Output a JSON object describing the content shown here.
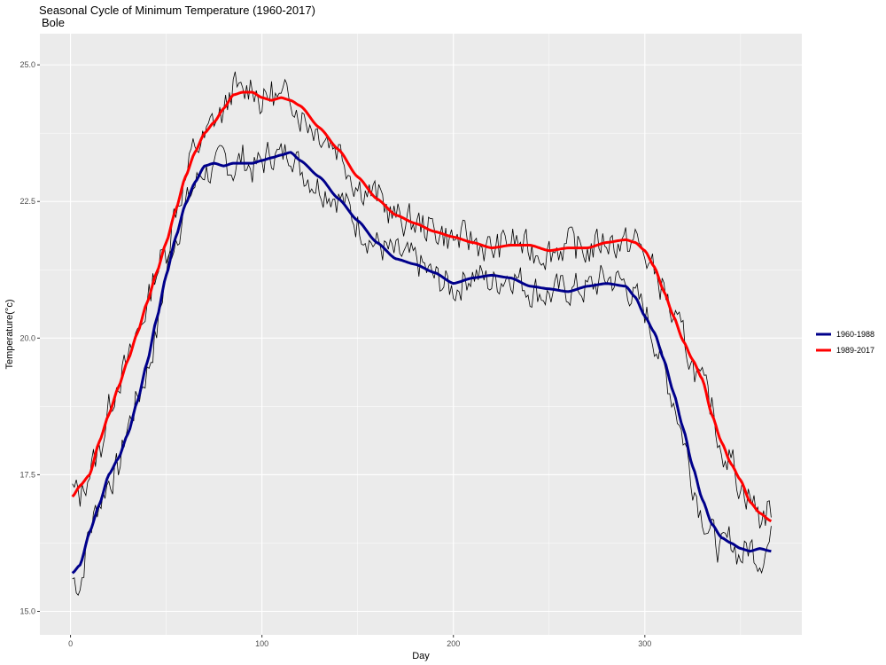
{
  "chart_data": {
    "type": "line",
    "title": "Seasonal Cycle of Minimum Temperature (1960-2017)",
    "subtitle": "Bole",
    "xlabel": "Day",
    "ylabel": "Temperature(°c)",
    "xlim": [
      -16,
      382
    ],
    "ylim": [
      14.57,
      25.57
    ],
    "x_ticks": [
      0,
      100,
      200,
      300
    ],
    "y_ticks": [
      15.0,
      17.5,
      20.0,
      22.5,
      25.0
    ],
    "x_tick_labels": [
      "0",
      "100",
      "200",
      "300"
    ],
    "y_tick_labels": [
      "15.0",
      "17.5",
      "20.0",
      "22.5",
      "25.0"
    ],
    "grid": true,
    "legend_position": "right",
    "series": [
      {
        "name": "1960-1988",
        "color": "#00008B",
        "style": "smooth",
        "x": [
          1,
          5,
          10,
          15,
          20,
          25,
          30,
          35,
          40,
          45,
          50,
          55,
          60,
          65,
          70,
          75,
          80,
          85,
          90,
          95,
          100,
          105,
          110,
          115,
          120,
          130,
          140,
          150,
          160,
          170,
          180,
          190,
          200,
          210,
          220,
          230,
          240,
          250,
          260,
          270,
          280,
          290,
          295,
          300,
          305,
          310,
          315,
          320,
          325,
          330,
          335,
          340,
          345,
          350,
          355,
          360,
          366
        ],
        "y": [
          15.7,
          15.85,
          16.45,
          16.95,
          17.5,
          17.8,
          18.25,
          18.85,
          19.55,
          20.35,
          21.15,
          21.85,
          22.45,
          22.85,
          23.15,
          23.2,
          23.15,
          23.2,
          23.2,
          23.2,
          23.25,
          23.3,
          23.35,
          23.4,
          23.25,
          22.95,
          22.55,
          22.15,
          21.75,
          21.45,
          21.35,
          21.2,
          21.0,
          21.1,
          21.15,
          21.1,
          20.95,
          20.9,
          20.85,
          20.95,
          21.0,
          20.95,
          20.75,
          20.4,
          20.1,
          19.6,
          19.0,
          18.35,
          17.65,
          17.05,
          16.6,
          16.35,
          16.25,
          16.15,
          16.1,
          16.15,
          16.1
        ]
      },
      {
        "name": "1989-2017",
        "color": "#FF0000",
        "style": "smooth",
        "x": [
          1,
          5,
          10,
          15,
          20,
          25,
          30,
          35,
          40,
          45,
          50,
          55,
          60,
          65,
          70,
          75,
          80,
          85,
          90,
          95,
          100,
          105,
          110,
          115,
          120,
          130,
          140,
          150,
          160,
          170,
          180,
          190,
          200,
          210,
          220,
          230,
          240,
          250,
          260,
          270,
          280,
          290,
          295,
          300,
          305,
          310,
          315,
          320,
          325,
          330,
          335,
          340,
          345,
          350,
          355,
          360,
          366
        ],
        "y": [
          17.1,
          17.3,
          17.5,
          18.1,
          18.6,
          19.1,
          19.6,
          20.1,
          20.65,
          21.2,
          21.75,
          22.35,
          22.95,
          23.4,
          23.75,
          23.95,
          24.2,
          24.45,
          24.5,
          24.5,
          24.4,
          24.35,
          24.4,
          24.35,
          24.25,
          23.85,
          23.45,
          22.95,
          22.55,
          22.25,
          22.1,
          21.95,
          21.85,
          21.75,
          21.65,
          21.7,
          21.7,
          21.6,
          21.65,
          21.65,
          21.75,
          21.8,
          21.75,
          21.6,
          21.3,
          20.85,
          20.4,
          19.95,
          19.6,
          19.25,
          18.6,
          18.1,
          17.7,
          17.4,
          17.0,
          16.8,
          16.65
        ]
      }
    ],
    "raw_traces": [
      {
        "color": "#000000",
        "style": "noisy-daily",
        "x": [
          1,
          5,
          10,
          15,
          20,
          25,
          30,
          35,
          40,
          45,
          50,
          55,
          60,
          65,
          70,
          75,
          80,
          85,
          90,
          95,
          100,
          105,
          110,
          115,
          120,
          130,
          140,
          150,
          160,
          170,
          180,
          190,
          200,
          210,
          220,
          230,
          240,
          250,
          260,
          270,
          280,
          290,
          295,
          300,
          305,
          310,
          315,
          320,
          325,
          330,
          335,
          340,
          345,
          350,
          355,
          360,
          366
        ],
        "y": [
          15.6,
          15.5,
          16.5,
          17.0,
          17.4,
          17.6,
          18.4,
          18.9,
          19.4,
          20.1,
          21.2,
          21.9,
          22.4,
          22.8,
          23.1,
          23.0,
          23.3,
          23.1,
          23.3,
          23.1,
          23.2,
          23.4,
          23.3,
          23.5,
          23.1,
          22.8,
          22.6,
          22.1,
          21.7,
          21.5,
          21.4,
          21.1,
          20.9,
          21.2,
          21.0,
          21.2,
          20.9,
          20.8,
          20.9,
          20.9,
          21.1,
          21.0,
          20.7,
          20.5,
          20.0,
          19.4,
          18.9,
          18.2,
          17.4,
          16.8,
          16.4,
          16.1,
          16.3,
          16.0,
          16.2,
          16.0,
          16.3
        ],
        "amp": 0.32,
        "seed": 7
      },
      {
        "color": "#000000",
        "style": "noisy-daily",
        "x": [
          1,
          5,
          10,
          15,
          20,
          25,
          30,
          35,
          40,
          45,
          50,
          55,
          60,
          65,
          70,
          75,
          80,
          85,
          90,
          95,
          100,
          105,
          110,
          115,
          120,
          130,
          140,
          150,
          160,
          170,
          180,
          190,
          200,
          210,
          220,
          230,
          240,
          250,
          260,
          270,
          280,
          290,
          295,
          300,
          305,
          310,
          315,
          320,
          325,
          330,
          335,
          340,
          345,
          350,
          355,
          360,
          366
        ],
        "y": [
          17.2,
          17.1,
          17.6,
          17.9,
          18.7,
          19.3,
          19.5,
          20.1,
          20.6,
          21.3,
          21.6,
          22.4,
          22.9,
          23.5,
          23.6,
          24.0,
          24.1,
          24.6,
          24.4,
          24.7,
          24.3,
          24.5,
          24.3,
          24.5,
          24.1,
          23.8,
          23.5,
          22.8,
          22.6,
          22.2,
          22.1,
          22.0,
          21.8,
          21.8,
          21.6,
          21.8,
          21.6,
          21.6,
          21.7,
          21.6,
          21.8,
          21.7,
          21.8,
          21.5,
          21.2,
          20.9,
          20.3,
          20.0,
          19.5,
          19.1,
          18.7,
          18.0,
          17.8,
          17.3,
          17.1,
          16.7,
          16.9
        ],
        "amp": 0.32,
        "seed": 13
      }
    ]
  }
}
